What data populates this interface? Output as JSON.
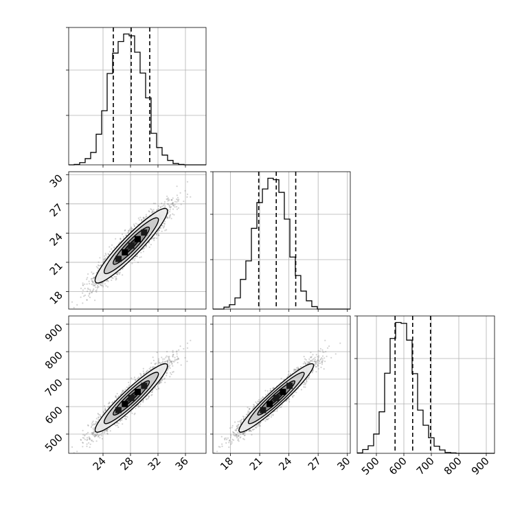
{
  "chart_data": {
    "type": "corner",
    "parameters": [
      {
        "key": "p0",
        "range": [
          19,
          39
        ],
        "ticks": [
          24,
          28,
          32,
          36
        ]
      },
      {
        "key": "p1",
        "range": [
          16.2,
          30.3
        ],
        "ticks": [
          18,
          21,
          24,
          27,
          30
        ]
      },
      {
        "key": "p2",
        "range": [
          430,
          930
        ],
        "ticks": [
          500,
          600,
          700,
          800,
          900
        ]
      }
    ],
    "grid": true,
    "scatter_color": "#7f7f7f",
    "line_color": "#000000",
    "quantiles": {
      "p0": [
        25.5,
        28.1,
        30.8
      ],
      "p1": [
        20.9,
        22.7,
        24.7
      ],
      "p2": [
        568,
        632,
        697
      ]
    },
    "histograms": {
      "p0": {
        "edges": [
          19.0,
          19.8,
          20.6,
          21.4,
          22.2,
          23.0,
          23.8,
          24.6,
          25.4,
          26.2,
          27.0,
          27.8,
          28.6,
          29.4,
          30.2,
          31.0,
          31.8,
          32.6,
          33.4,
          34.2,
          35.0,
          35.8,
          36.6,
          37.4,
          38.2,
          39.0
        ],
        "counts": [
          0,
          1,
          5,
          14,
          28,
          69,
          122,
          206,
          252,
          278,
          295,
          291,
          254,
          207,
          151,
          71,
          39,
          22,
          10,
          3,
          1,
          0,
          0,
          0,
          0
        ]
      },
      "p1": {
        "edges": [
          16.2,
          16.76,
          17.33,
          17.89,
          18.46,
          19.02,
          19.58,
          20.15,
          20.71,
          21.28,
          21.84,
          22.4,
          22.97,
          23.53,
          24.1,
          24.66,
          25.22,
          25.79,
          26.35,
          26.92,
          27.48,
          28.04,
          28.61,
          29.17,
          29.74,
          30.3
        ],
        "counts": [
          0,
          0,
          4,
          9,
          23,
          61,
          99,
          166,
          219,
          247,
          269,
          266,
          240,
          185,
          107,
          69,
          37,
          17,
          5,
          0,
          0,
          0,
          0,
          0,
          0
        ]
      },
      "p2": {
        "edges": [
          430,
          450,
          470,
          490,
          510,
          530,
          550,
          570,
          590,
          610,
          630,
          650,
          670,
          690,
          710,
          730,
          750,
          770,
          790,
          810,
          830,
          850,
          870,
          890,
          910,
          930
        ],
        "counts": [
          1,
          9,
          18,
          46,
          99,
          191,
          274,
          312,
          310,
          270,
          190,
          103,
          67,
          37,
          17,
          8,
          2,
          1,
          0,
          0,
          0,
          0,
          0,
          0,
          0
        ]
      }
    }
  }
}
